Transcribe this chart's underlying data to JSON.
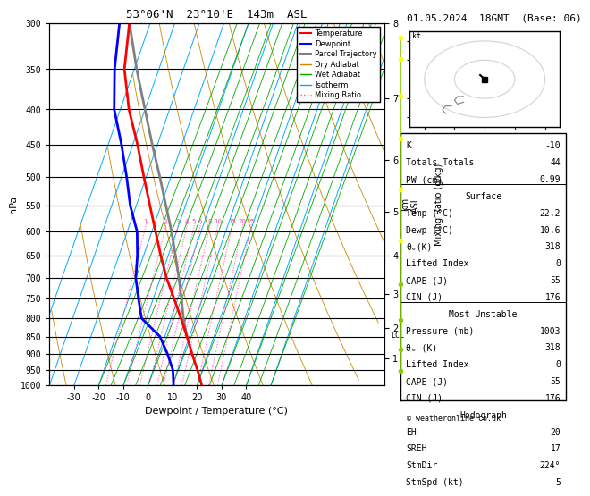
{
  "title_left": "53°06'N  23°10'E  143m  ASL",
  "title_right": "01.05.2024  18GMT  (Base: 06)",
  "xlabel": "Dewpoint / Temperature (°C)",
  "ylabel_left": "hPa",
  "pressure_levels": [
    300,
    350,
    400,
    450,
    500,
    550,
    600,
    650,
    700,
    750,
    800,
    850,
    900,
    950,
    1000
  ],
  "temp_ticks": [
    -30,
    -20,
    -10,
    0,
    10,
    20,
    30,
    40
  ],
  "skew_factor": 0.6,
  "tmin": -40,
  "tmax": 45,
  "pmin": 300,
  "pmax": 1000,
  "temp_profile_pressure": [
    1003,
    950,
    900,
    850,
    800,
    750,
    700,
    650,
    600,
    550,
    500,
    450,
    400,
    350,
    300
  ],
  "temp_profile_temp": [
    22.2,
    18.0,
    13.5,
    9.0,
    4.0,
    -1.5,
    -7.5,
    -13.0,
    -18.5,
    -24.5,
    -31.0,
    -38.0,
    -46.5,
    -54.0,
    -58.5
  ],
  "dewp_profile_pressure": [
    1003,
    950,
    900,
    850,
    800,
    750,
    700,
    650,
    600,
    550,
    500,
    450,
    400,
    350,
    300
  ],
  "dewp_profile_temp": [
    10.6,
    8.0,
    3.5,
    -2.0,
    -12.0,
    -16.0,
    -20.0,
    -22.5,
    -26.0,
    -32.5,
    -38.0,
    -44.5,
    -52.5,
    -58.0,
    -62.5
  ],
  "parcel_profile_pressure": [
    850,
    800,
    750,
    700,
    650,
    600,
    550,
    500,
    450,
    400,
    350,
    300
  ],
  "parcel_profile_temp": [
    9.0,
    5.0,
    1.5,
    -2.5,
    -7.0,
    -12.0,
    -18.0,
    -24.5,
    -32.0,
    -40.0,
    -49.0,
    -58.5
  ],
  "lcl_pressure": 848,
  "mixing_ratio_lines": [
    1,
    2,
    3,
    4,
    5,
    6,
    8,
    10,
    15,
    20,
    25
  ],
  "km_ticks": [
    1,
    2,
    3,
    4,
    5,
    6,
    7,
    8
  ],
  "km_pressures": [
    898,
    795,
    695,
    596,
    500,
    407,
    318,
    235
  ],
  "temp_color": "#ff0000",
  "dewp_color": "#0000ff",
  "parcel_color": "#808080",
  "dry_adiabat_color": "#cc8800",
  "wet_adiabat_color": "#00aa00",
  "isotherm_color": "#00aaff",
  "mixing_ratio_color": "#ff44aa",
  "copyright": "© weatheronline.co.uk"
}
